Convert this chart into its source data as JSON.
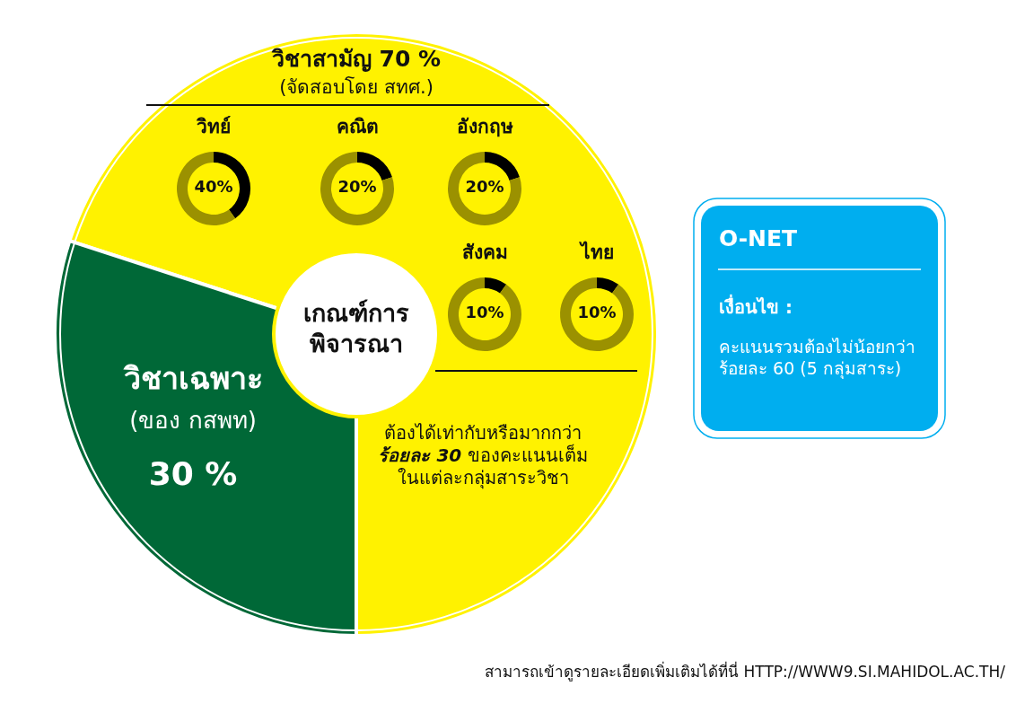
{
  "chart_data": [
    {
      "type": "donut",
      "title": "เกณฑ์การพิจารณา",
      "categories": [
        "วิชาสามัญ",
        "วิชาเฉพาะ"
      ],
      "values": [
        70,
        30
      ],
      "value_labels": [
        "70 %",
        "30 %"
      ],
      "colors": [
        "#fff200",
        "#006837"
      ],
      "annotations": [
        "(จัดสอบโดย สทศ.)",
        "(ของ กสพท)",
        "ต้องได้เท่ากับหรือมากกว่า **ร้อยละ 30** ของคะแนนเต็ม ในแต่ละกลุ่มสาระวิชา",
        "สามารถเข้าดูรายละเอียดเพิ่มเติมได้ที่นี่ HTTP://WWW9.SI.MAHIDOL.AC.TH/"
      ]
    },
    {
      "type": "donut",
      "title": "วิทย์",
      "categories": [
        null,
        null
      ],
      "values": [
        40,
        60
      ],
      "value_labels": [
        "40%",
        null
      ],
      "colors": [
        "#000000",
        "#9b9100"
      ]
    },
    {
      "type": "donut",
      "title": "คณิต",
      "categories": [
        null,
        null
      ],
      "values": [
        20,
        80
      ],
      "value_labels": [
        "20%",
        null
      ],
      "colors": [
        "#000000",
        "#9b9100"
      ]
    },
    {
      "type": "donut",
      "title": "อังกฤษ",
      "categories": [
        null,
        null
      ],
      "values": [
        20,
        80
      ],
      "value_labels": [
        "20%",
        null
      ],
      "colors": [
        "#000000",
        "#9b9100"
      ]
    },
    {
      "type": "donut",
      "title": "สังคม",
      "categories": [
        null,
        null
      ],
      "values": [
        10,
        90
      ],
      "value_labels": [
        "10%",
        null
      ],
      "colors": [
        "#000000",
        "#9b9100"
      ]
    },
    {
      "type": "donut",
      "title": "ไทย",
      "categories": [
        null,
        null
      ],
      "values": [
        10,
        90
      ],
      "value_labels": [
        "10%",
        null
      ],
      "colors": [
        "#000000",
        "#9b9100"
      ]
    },
    {
      "type": "other",
      "title": "O-NET",
      "subtitle": "เงื่อนไข :",
      "annotations": [
        "คะแนนรวมต้องไม่น้อยกว่า ร้อยละ 60 (5 กลุ่มสาระ)"
      ]
    }
  ]
}
